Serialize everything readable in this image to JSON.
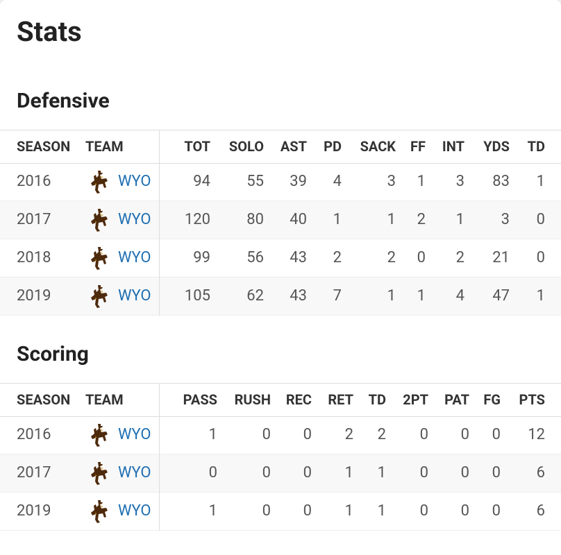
{
  "header": {
    "title": "Stats"
  },
  "sections": [
    {
      "title": "Defensive",
      "columns": [
        "SEASON",
        "TEAM",
        "TOT",
        "SOLO",
        "AST",
        "PD",
        "SACK",
        "FF",
        "INT",
        "YDS",
        "TD"
      ],
      "rows": [
        [
          "2016",
          "WYO",
          94,
          55,
          39,
          4,
          3,
          1,
          3,
          83,
          1
        ],
        [
          "2017",
          "WYO",
          120,
          80,
          40,
          1,
          1,
          2,
          1,
          3,
          0
        ],
        [
          "2018",
          "WYO",
          99,
          56,
          43,
          2,
          2,
          0,
          2,
          21,
          0
        ],
        [
          "2019",
          "WYO",
          105,
          62,
          43,
          7,
          1,
          1,
          4,
          47,
          1
        ]
      ]
    },
    {
      "title": "Scoring",
      "columns": [
        "SEASON",
        "TEAM",
        "PASS",
        "RUSH",
        "REC",
        "RET",
        "TD",
        "2PT",
        "PAT",
        "FG",
        "PTS"
      ],
      "rows": [
        [
          "2016",
          "WYO",
          1,
          0,
          0,
          2,
          2,
          0,
          0,
          0,
          12
        ],
        [
          "2017",
          "WYO",
          0,
          0,
          0,
          1,
          1,
          0,
          0,
          0,
          6
        ],
        [
          "2019",
          "WYO",
          1,
          0,
          0,
          1,
          1,
          0,
          0,
          0,
          6
        ]
      ]
    }
  ]
}
